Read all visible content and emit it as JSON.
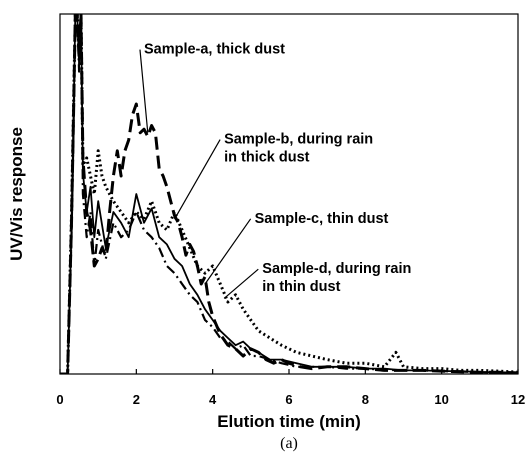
{
  "chart_data": {
    "type": "line",
    "title": "",
    "xlabel": "Elution time (min)",
    "ylabel": "UV/Vis response",
    "caption": "(a)",
    "xlim": [
      0,
      12
    ],
    "ylim": [
      0,
      100
    ],
    "xticks": [
      "0",
      "2",
      "4",
      "6",
      "8",
      "10",
      "12"
    ],
    "show_y_ticks": false,
    "grid": false,
    "legend": "none",
    "series": [
      {
        "style": "long-dash",
        "x": [
          0.0,
          0.2,
          0.3,
          0.35,
          0.4,
          0.45,
          0.5,
          0.55,
          0.6,
          0.7,
          0.8,
          0.9,
          1.0,
          1.1,
          1.2,
          1.3,
          1.4,
          1.5,
          1.6,
          1.7,
          1.8,
          1.9,
          2.0,
          2.1,
          2.2,
          2.3,
          2.4,
          2.5,
          2.6,
          2.7,
          2.8,
          2.9,
          3.0,
          3.1,
          3.2,
          3.3,
          3.4,
          3.5,
          3.6,
          3.7,
          3.8,
          3.9,
          4.0,
          4.2,
          4.4,
          4.6,
          4.8,
          5.0,
          5.2,
          5.4,
          5.6,
          5.8,
          6.0,
          6.3,
          6.6,
          7.0,
          7.5,
          8.0,
          8.5,
          9.0,
          9.5,
          10.0,
          10.5,
          11.0,
          11.5,
          12.0
        ],
        "y": [
          0,
          0,
          42,
          70,
          100,
          100,
          88,
          100,
          60,
          45,
          40,
          30,
          32,
          35,
          33,
          45,
          55,
          62,
          55,
          62,
          65,
          72,
          75,
          67,
          68,
          66,
          69,
          67,
          57,
          55,
          52,
          48,
          44,
          42,
          38,
          33,
          36,
          34,
          30,
          25,
          27,
          20,
          16,
          11,
          8,
          7,
          5,
          7,
          6,
          4,
          3,
          4,
          3,
          2,
          1.5,
          2,
          2,
          1.5,
          1,
          1,
          1,
          0.8,
          0.6,
          0.5,
          0.5,
          0.3
        ]
      },
      {
        "style": "dotted",
        "x": [
          0.0,
          0.2,
          0.3,
          0.35,
          0.4,
          0.45,
          0.5,
          0.55,
          0.6,
          0.7,
          0.8,
          0.9,
          1.0,
          1.1,
          1.2,
          1.4,
          1.6,
          1.8,
          2.0,
          2.2,
          2.4,
          2.6,
          2.8,
          3.0,
          3.2,
          3.4,
          3.6,
          3.8,
          4.0,
          4.2,
          4.4,
          4.6,
          4.8,
          5.0,
          5.2,
          5.5,
          5.8,
          6.2,
          6.6,
          7.0,
          7.5,
          8.0,
          8.5,
          8.8,
          9.0,
          9.5,
          10.0,
          10.5,
          11.0,
          11.5,
          12.0
        ],
        "y": [
          0,
          0,
          44,
          72,
          100,
          100,
          90,
          100,
          58,
          60,
          55,
          50,
          62,
          55,
          52,
          48,
          45,
          42,
          45,
          43,
          48,
          42,
          40,
          45,
          40,
          35,
          30,
          28,
          30,
          25,
          20,
          22,
          18,
          15,
          12,
          10,
          8,
          6,
          5,
          4,
          3,
          3,
          2,
          6,
          2,
          1.5,
          1.5,
          1,
          1,
          0.8,
          0.5
        ]
      },
      {
        "style": "solid",
        "x": [
          0.0,
          0.2,
          0.3,
          0.35,
          0.4,
          0.45,
          0.5,
          0.55,
          0.6,
          0.7,
          0.8,
          0.9,
          1.0,
          1.2,
          1.4,
          1.6,
          1.8,
          2.0,
          2.2,
          2.4,
          2.6,
          2.8,
          3.0,
          3.2,
          3.4,
          3.6,
          3.8,
          4.0,
          4.2,
          4.4,
          4.6,
          4.8,
          5.0,
          5.2,
          5.5,
          5.8,
          6.2,
          6.6,
          7.0,
          7.5,
          8.0,
          8.5,
          9.0,
          9.5,
          10.0,
          10.5,
          11.0,
          11.5,
          12.0
        ],
        "y": [
          0,
          0,
          40,
          68,
          100,
          100,
          86,
          100,
          56,
          45,
          52,
          38,
          48,
          35,
          45,
          42,
          38,
          50,
          42,
          46,
          38,
          36,
          32,
          30,
          25,
          22,
          18,
          15,
          12,
          10,
          8,
          9,
          7,
          6,
          4,
          4,
          3,
          2,
          2,
          2,
          1.5,
          1.5,
          1,
          1,
          0.8,
          0.8,
          0.5,
          0.5,
          0.3
        ]
      },
      {
        "style": "dash-dot",
        "x": [
          0.0,
          0.2,
          0.3,
          0.35,
          0.4,
          0.45,
          0.5,
          0.55,
          0.6,
          0.7,
          0.8,
          0.9,
          1.0,
          1.2,
          1.4,
          1.6,
          1.8,
          2.0,
          2.2,
          2.4,
          2.6,
          2.8,
          3.0,
          3.2,
          3.4,
          3.6,
          3.8,
          4.0,
          4.2,
          4.4,
          4.6,
          4.8,
          5.0,
          5.2,
          5.5,
          5.8,
          6.2,
          6.6,
          7.0,
          7.5,
          8.0,
          8.5,
          9.0,
          9.5,
          10.0,
          10.5,
          11.0,
          11.5,
          12.0
        ],
        "y": [
          0,
          0,
          38,
          66,
          100,
          100,
          84,
          100,
          50,
          38,
          45,
          30,
          40,
          32,
          42,
          38,
          40,
          45,
          40,
          38,
          35,
          30,
          28,
          25,
          22,
          20,
          15,
          13,
          10,
          9,
          7,
          8,
          5,
          5,
          4,
          3,
          2,
          2,
          2,
          1.5,
          1.5,
          1.2,
          1,
          1,
          0.8,
          0.7,
          0.5,
          0.4,
          0.3
        ]
      }
    ],
    "annotations": [
      {
        "lines": [
          "Sample-a, thick dust"
        ],
        "text_x": 2.2,
        "text_y": 89,
        "arrow_to": [
          2.3,
          67
        ]
      },
      {
        "lines": [
          "Sample-b, during rain",
          "in thick dust"
        ],
        "text_x": 4.3,
        "text_y": 64,
        "arrow_to": [
          3.0,
          43
        ]
      },
      {
        "lines": [
          "Sample-c, thin dust"
        ],
        "text_x": 5.1,
        "text_y": 42,
        "arrow_to": [
          3.8,
          25
        ]
      },
      {
        "lines": [
          "Sample-d, during rain",
          "in thin dust"
        ],
        "text_x": 5.3,
        "text_y": 28,
        "arrow_to": [
          4.3,
          21
        ]
      }
    ]
  }
}
